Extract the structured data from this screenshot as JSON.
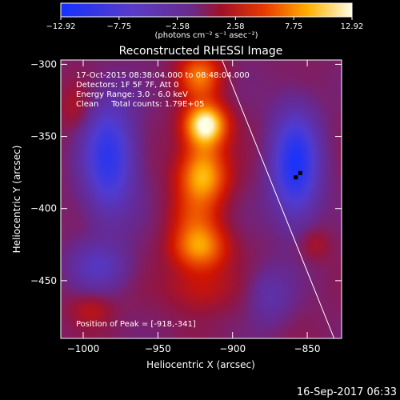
{
  "chart_data": {
    "type": "heatmap",
    "title": "Reconstructed RHESSI Image",
    "xlabel": "Heliocentric X (arcsec)",
    "ylabel": "Heliocentric Y (arcsec)",
    "xlim": [
      -1015,
      -827
    ],
    "ylim": [
      -490,
      -297
    ],
    "x_ticks": [
      -1000,
      -950,
      -900,
      -850
    ],
    "y_ticks": [
      -300,
      -350,
      -400,
      -450
    ],
    "x_tick_labels": [
      "−1000",
      "−950",
      "−900",
      "−850"
    ],
    "y_tick_labels": [
      "−300",
      "−350",
      "−400",
      "−450"
    ],
    "colorbar": {
      "min": -12.92,
      "max": 12.92,
      "ticks": [
        -12.92,
        -7.75,
        -2.58,
        2.58,
        7.75,
        12.92
      ],
      "tick_labels": [
        "−12.92",
        "−7.75",
        "−2.58",
        "2.58",
        "7.75",
        "12.92"
      ],
      "unit": "(photons cm⁻² s⁻¹ asec⁻²)"
    },
    "annotations": [
      "17-Oct-2015 08:38:04.000 to 08:48:04.000",
      "Detectors: 1F 5F 7F, Att 0",
      "Energy Range: 3.0 - 6.0 keV",
      "Clean     Total counts: 1.79E+05"
    ],
    "peak_label": "Position of Peak = [-918,-341]",
    "peak": [
      -918,
      -341
    ],
    "limb_line": [
      [
        -907,
        -297
      ],
      [
        -832,
        -490
      ]
    ],
    "sources": [
      {
        "x": -918,
        "y": -341,
        "amplitude": 12.9,
        "sx": 10,
        "sy": 10
      },
      {
        "x": -922,
        "y": -308,
        "amplitude": 8.0,
        "sx": 10,
        "sy": 11
      },
      {
        "x": -920,
        "y": -380,
        "amplitude": 8.5,
        "sx": 12,
        "sy": 12
      },
      {
        "x": -922,
        "y": -427,
        "amplitude": 9.0,
        "sx": 13,
        "sy": 11
      },
      {
        "x": -920,
        "y": -360,
        "amplitude": 5.0,
        "sx": 11,
        "sy": 14
      },
      {
        "x": -925,
        "y": -405,
        "amplitude": 4.5,
        "sx": 12,
        "sy": 12
      },
      {
        "x": -922,
        "y": -455,
        "amplitude": 3.5,
        "sx": 16,
        "sy": 12
      },
      {
        "x": -983,
        "y": -365,
        "amplitude": -9.5,
        "sx": 12,
        "sy": 28
      },
      {
        "x": -858,
        "y": -370,
        "amplitude": -11.0,
        "sx": 11,
        "sy": 26
      },
      {
        "x": -990,
        "y": -440,
        "amplitude": -4.5,
        "sx": 14,
        "sy": 12
      },
      {
        "x": -875,
        "y": -460,
        "amplitude": -3.5,
        "sx": 10,
        "sy": 14
      },
      {
        "x": -1005,
        "y": -330,
        "amplitude": 2.5,
        "sx": 8,
        "sy": 12
      },
      {
        "x": -845,
        "y": -425,
        "amplitude": 2.5,
        "sx": 7,
        "sy": 8
      },
      {
        "x": -995,
        "y": -470,
        "amplitude": 3.0,
        "sx": 10,
        "sy": 8
      }
    ]
  },
  "footer": {
    "timestamp": "16-Sep-2017 06:33"
  }
}
